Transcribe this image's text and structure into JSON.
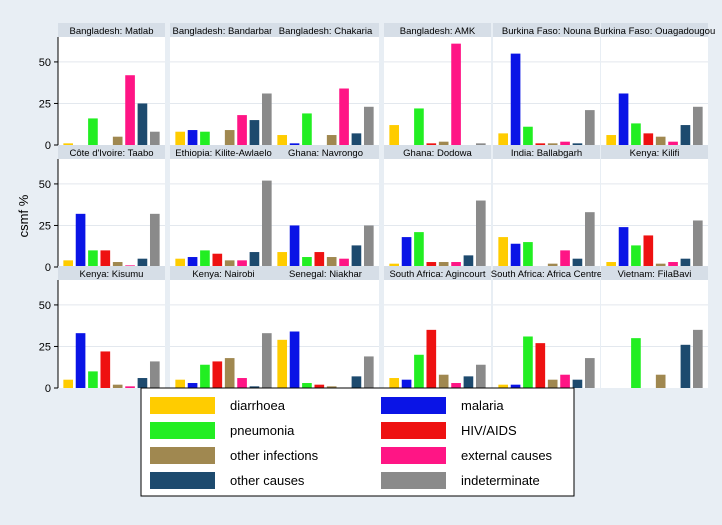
{
  "chart_data": {
    "type": "bar",
    "ylabel": "csmf %",
    "ylim": [
      0,
      65
    ],
    "yticks": [
      0,
      25,
      50
    ],
    "grid": true,
    "legend_position": "bottom",
    "categories": [
      "diarrhoea",
      "malaria",
      "pneumonia",
      "HIV/AIDS",
      "other infections",
      "external causes",
      "other causes",
      "indeterminate"
    ],
    "colors": {
      "diarrhoea": "#ffcc00",
      "malaria": "#0a14e6",
      "pneumonia": "#22ee22",
      "HIV/AIDS": "#ee1111",
      "other infections": "#a08850",
      "external causes": "#ff1585",
      "other causes": "#1d4a6e",
      "indeterminate": "#8a8a8a"
    },
    "panels": [
      {
        "title": "Bangladesh: Matlab",
        "values": [
          1,
          0,
          16,
          0,
          5,
          42,
          25,
          8
        ]
      },
      {
        "title": "Bangladesh: Bandarban",
        "values": [
          8,
          9,
          8,
          0,
          9,
          18,
          15,
          31
        ]
      },
      {
        "title": "Bangladesh: Chakaria",
        "values": [
          6,
          1,
          19,
          0,
          6,
          34,
          7,
          23
        ]
      },
      {
        "title": "Bangladesh: AMK",
        "values": [
          12,
          0,
          22,
          1,
          2,
          61,
          0,
          1
        ]
      },
      {
        "title": "Burkina Faso: Nouna",
        "values": [
          7,
          55,
          11,
          1,
          1,
          2,
          1,
          21
        ]
      },
      {
        "title": "Burkina Faso: Ouagadougou",
        "values": [
          6,
          31,
          13,
          7,
          5,
          2,
          12,
          23
        ]
      },
      {
        "title": "Côte d'Ivoire: Taabo",
        "values": [
          4,
          32,
          10,
          10,
          3,
          1,
          5,
          32
        ]
      },
      {
        "title": "Ethiopia: Kilite-Awlaelo",
        "values": [
          5,
          6,
          10,
          8,
          4,
          4,
          9,
          52
        ]
      },
      {
        "title": "Ghana: Navrongo",
        "values": [
          9,
          25,
          6,
          9,
          6,
          5,
          13,
          25
        ]
      },
      {
        "title": "Ghana: Dodowa",
        "values": [
          2,
          18,
          21,
          3,
          3,
          3,
          7,
          40
        ]
      },
      {
        "title": "India: Ballabgarh",
        "values": [
          18,
          14,
          15,
          0,
          2,
          10,
          5,
          33
        ]
      },
      {
        "title": "Kenya: Kilifi",
        "values": [
          3,
          24,
          13,
          19,
          2,
          3,
          5,
          28
        ]
      },
      {
        "title": "Kenya: Kisumu",
        "values": [
          5,
          33,
          10,
          22,
          2,
          1,
          6,
          16
        ]
      },
      {
        "title": "Kenya: Nairobi",
        "values": [
          5,
          3,
          14,
          16,
          18,
          6,
          1,
          33
        ]
      },
      {
        "title": "Senegal: Niakhar",
        "values": [
          29,
          34,
          3,
          2,
          1,
          0,
          7,
          19
        ]
      },
      {
        "title": "South Africa: Agincourt",
        "values": [
          6,
          5,
          20,
          35,
          8,
          3,
          7,
          14
        ]
      },
      {
        "title": "South Africa: Africa Centre",
        "values": [
          2,
          2,
          31,
          27,
          5,
          8,
          5,
          18
        ]
      },
      {
        "title": "Vietnam: FilaBavi",
        "values": [
          0,
          0,
          30,
          0,
          8,
          0,
          26,
          35
        ]
      }
    ]
  }
}
